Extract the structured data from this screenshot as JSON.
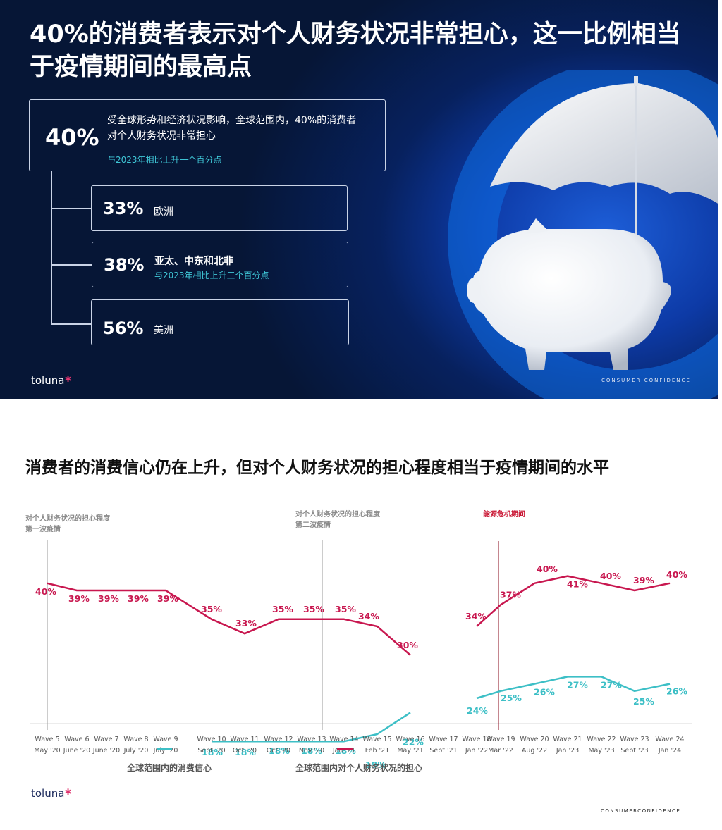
{
  "slide1": {
    "title": "40%的消费者表示对个人财务状况非常担心，这一比例相当于疫情期间的最高点",
    "main": {
      "percent": "40%",
      "text": "受全球形势和经济状况影响，全球范围内，40%的消费者对个人财务状况非常担心",
      "sub": "与2023年相比上升一个百分点"
    },
    "regions": [
      {
        "percent": "33%",
        "label": "欧洲",
        "sub": ""
      },
      {
        "percent": "38%",
        "label": "亚太、中东和北非",
        "sub": "与2023年相比上升三个百分点"
      },
      {
        "percent": "56%",
        "label": "美洲",
        "sub": ""
      }
    ],
    "logo": "toluna",
    "footer": "CONSUMER CONFIDENCE"
  },
  "slide2": {
    "title": "消费者的消费信心仍在上升，但对个人财务状况的担心程度相当于疫情期间的水平",
    "annotations": [
      {
        "line1": "对个人财务状况的担心程度",
        "line2": "第一波疫情"
      },
      {
        "line1": "对个人财务状况的担心程度",
        "line2": "第二波疫情"
      },
      {
        "line1": "能源危机期间",
        "line2": ""
      }
    ],
    "logo": "toluna",
    "footer": "CONSUMERCONFIDENCE"
  },
  "chart_data": {
    "type": "line",
    "categories": [
      {
        "wave": "Wave 5",
        "date": "May '20"
      },
      {
        "wave": "Wave 6",
        "date": "June '20"
      },
      {
        "wave": "Wave 7",
        "date": "June '20"
      },
      {
        "wave": "Wave 8",
        "date": "July '20"
      },
      {
        "wave": "Wave 9",
        "date": "July '20"
      },
      {
        "wave": "Wave 10",
        "date": "Sept '20"
      },
      {
        "wave": "Wave 11",
        "date": "Oct '20"
      },
      {
        "wave": "Wave 12",
        "date": "Oct '20"
      },
      {
        "wave": "Wave 13",
        "date": "Nov '20"
      },
      {
        "wave": "Wave 14",
        "date": "Jan '21"
      },
      {
        "wave": "Wave 15",
        "date": "Feb '21"
      },
      {
        "wave": "Wave 16",
        "date": "May '21"
      },
      {
        "wave": "Wave 17",
        "date": "Sept '21"
      },
      {
        "wave": "Wave 18",
        "date": "Jan '22"
      },
      {
        "wave": "Wave 19",
        "date": "Mar '22"
      },
      {
        "wave": "Wave 20",
        "date": "Aug '22"
      },
      {
        "wave": "Wave 21",
        "date": "Jan '23"
      },
      {
        "wave": "Wave 22",
        "date": "May '23"
      },
      {
        "wave": "Wave 23",
        "date": "Sept '23"
      },
      {
        "wave": "Wave 24",
        "date": "Jan '24"
      }
    ],
    "series": [
      {
        "name": "全球范围内对个人财务状况的担心",
        "color": "#c8174f",
        "values": [
          40,
          39,
          39,
          39,
          39,
          35,
          33,
          35,
          35,
          35,
          34,
          30,
          null,
          34,
          37,
          40,
          41,
          40,
          39,
          40
        ]
      },
      {
        "name": "全球范围内的消费信心",
        "color": "#3dbfc6",
        "values": [
          null,
          null,
          null,
          null,
          null,
          18,
          18,
          18,
          18,
          18,
          19,
          22,
          null,
          24,
          25,
          26,
          27,
          27,
          25,
          26
        ]
      }
    ],
    "ylim": [
      0,
      50
    ],
    "event_lines": [
      {
        "at": "Wave 5",
        "color": "#9a9a9a"
      },
      {
        "at": "Wave 14",
        "color": "#9a9a9a"
      },
      {
        "at": "Wave 19",
        "color": "#8b0d1f"
      }
    ]
  }
}
